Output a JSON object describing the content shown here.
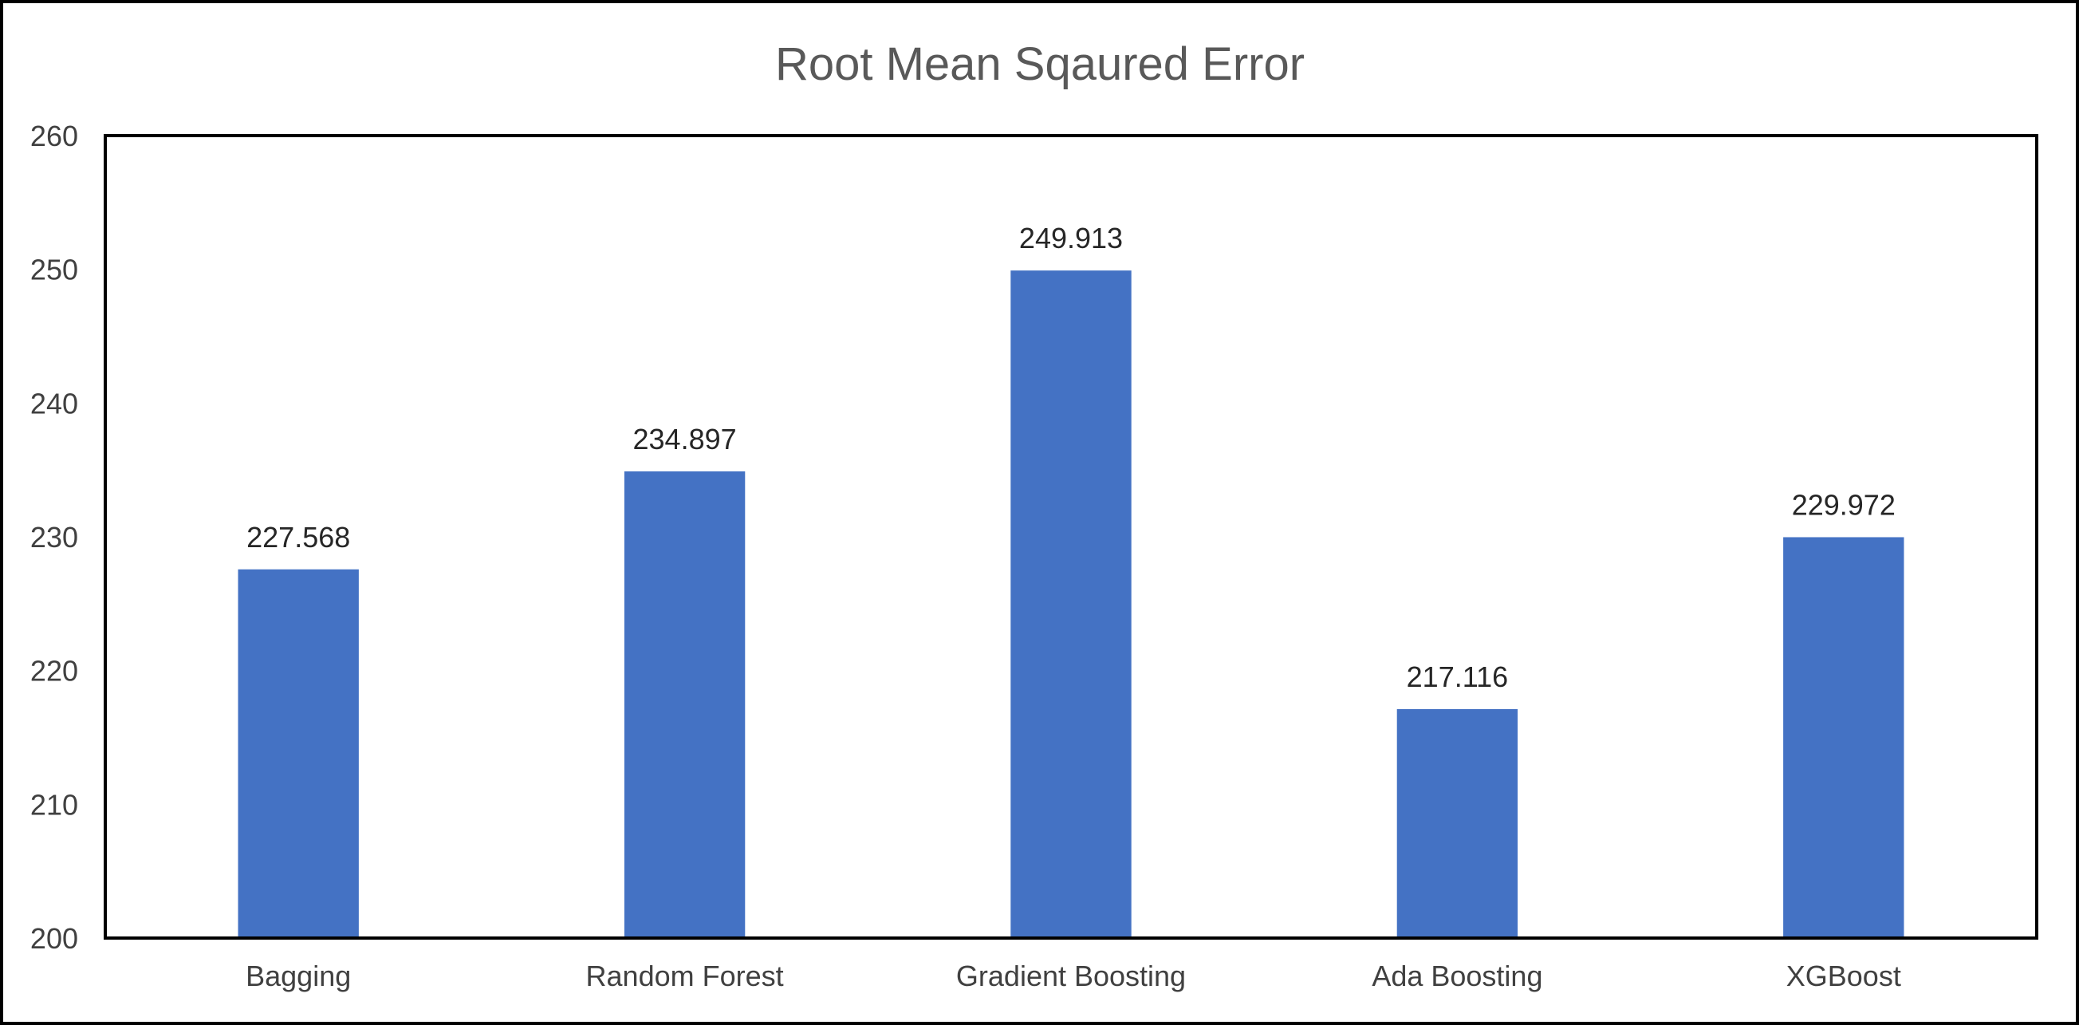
{
  "chart_data": {
    "type": "bar",
    "title": "Root Mean Sqaured Error",
    "xlabel": "",
    "ylabel": "",
    "categories": [
      "Bagging",
      "Random Forest",
      "Gradient Boosting",
      "Ada Boosting",
      "XGBoost"
    ],
    "series": [
      {
        "values": [
          227.568,
          234.897,
          249.913,
          217.116,
          229.972
        ],
        "data_labels": [
          "227.568",
          "234.897",
          "249.913",
          "217.116",
          "229.972"
        ],
        "color": "#4472C4"
      }
    ],
    "ylim": [
      200,
      260
    ],
    "y_ticks": [
      "200",
      "210",
      "220",
      "230",
      "240",
      "250",
      "260"
    ],
    "grid": false,
    "legend": "none"
  }
}
